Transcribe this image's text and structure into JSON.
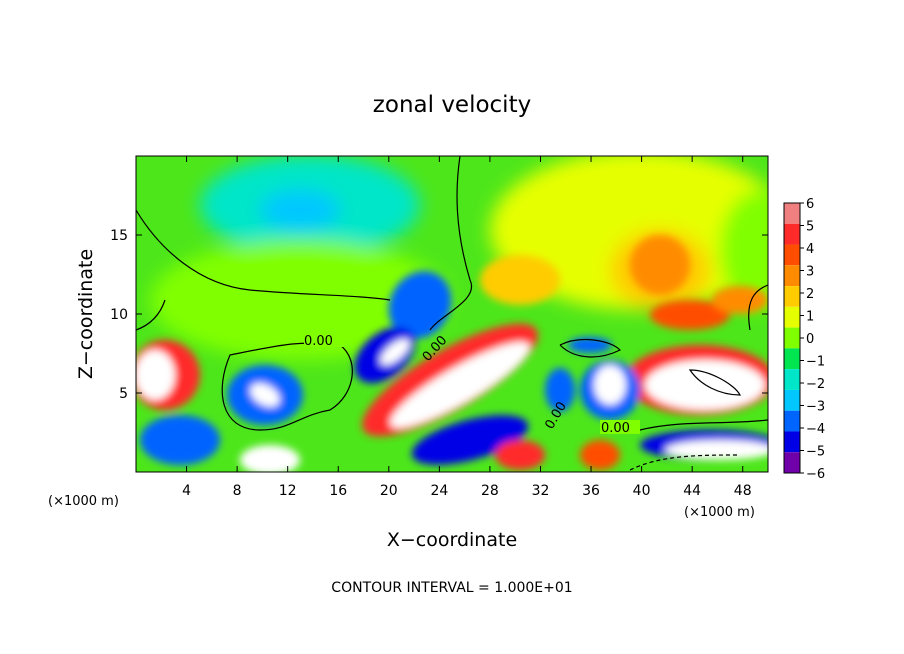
{
  "chart_data": {
    "type": "heatmap",
    "title": "zonal velocity",
    "xlabel": "X−coordinate",
    "ylabel": "Z−coordinate",
    "x_units_left": "(×1000 m)",
    "x_units_right": "(×1000 m)",
    "footer": "CONTOUR INTERVAL = 1.000E+01",
    "xlim": [
      0,
      50
    ],
    "ylim": [
      0,
      20
    ],
    "x_ticks": [
      4,
      8,
      12,
      16,
      20,
      24,
      28,
      32,
      36,
      40,
      44,
      48
    ],
    "y_ticks": [
      5,
      10,
      15
    ],
    "contour_labels": [
      "0.00",
      "0.00",
      "0.00",
      "0.00"
    ],
    "colorbar": {
      "levels": [
        6,
        5,
        4,
        3,
        2,
        1,
        0,
        -1,
        -2,
        -3,
        -4,
        -5,
        -6
      ],
      "tick_labels": [
        "6",
        "5",
        "4",
        "3",
        "2",
        "1",
        "0",
        "−1",
        "−2",
        "−3",
        "−4",
        "−5",
        "−6"
      ],
      "colors": [
        "#f08080",
        "#ff2a2a",
        "#ff4e00",
        "#ff8c00",
        "#ffcc00",
        "#e6ff00",
        "#80ff00",
        "#00e650",
        "#00e6c8",
        "#00c8ff",
        "#0064ff",
        "#0000e6",
        "#7000a8"
      ]
    },
    "background_color": "#4de61a"
  }
}
